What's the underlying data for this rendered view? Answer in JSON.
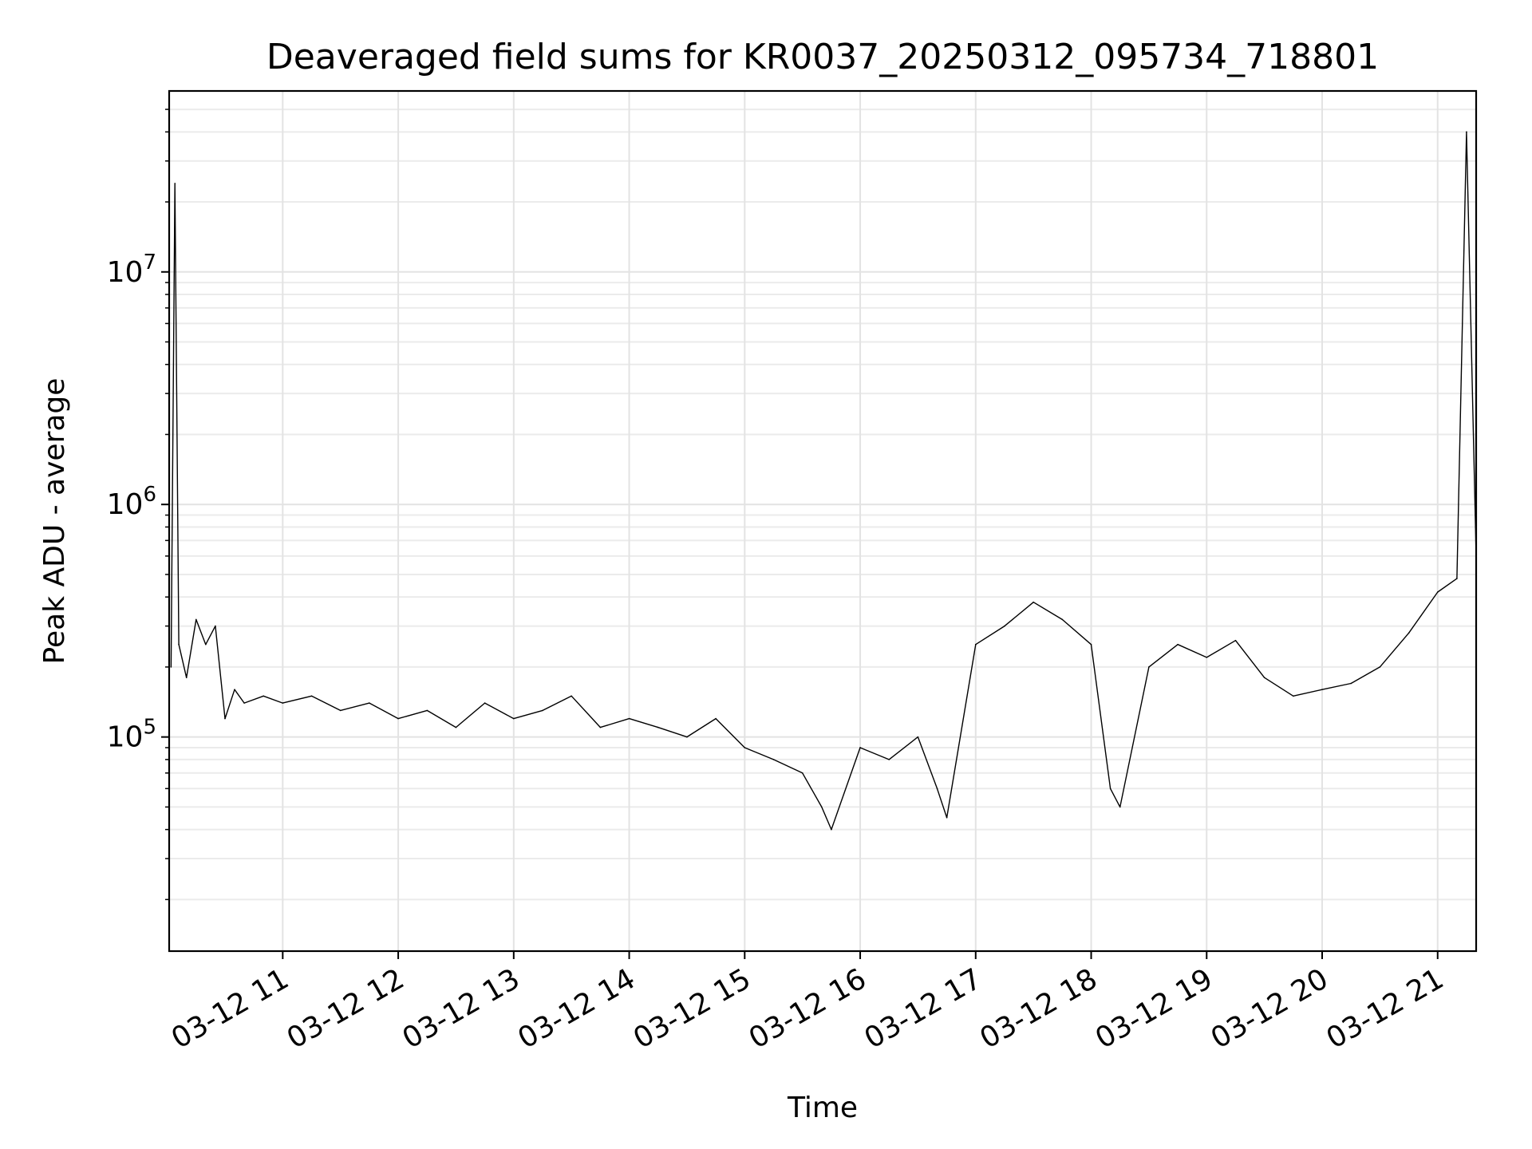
{
  "chart_data": {
    "type": "line",
    "title": "Deaveraged field sums for KR0037_20250312_095734_718801",
    "xlabel": "Time",
    "ylabel": "Peak ADU - average",
    "yscale": "log",
    "grid": "major and minor, light gray",
    "line_color": "#000000",
    "xlim": [
      "2025-03-12 10:01",
      "2025-03-12 21:20"
    ],
    "ylim": [
      12000,
      60000000
    ],
    "xticks": [
      {
        "value": "2025-03-12 11:00",
        "label": "03-12 11"
      },
      {
        "value": "2025-03-12 12:00",
        "label": "03-12 12"
      },
      {
        "value": "2025-03-12 13:00",
        "label": "03-12 13"
      },
      {
        "value": "2025-03-12 14:00",
        "label": "03-12 14"
      },
      {
        "value": "2025-03-12 15:00",
        "label": "03-12 15"
      },
      {
        "value": "2025-03-12 16:00",
        "label": "03-12 16"
      },
      {
        "value": "2025-03-12 17:00",
        "label": "03-12 17"
      },
      {
        "value": "2025-03-12 18:00",
        "label": "03-12 18"
      },
      {
        "value": "2025-03-12 19:00",
        "label": "03-12 19"
      },
      {
        "value": "2025-03-12 20:00",
        "label": "03-12 20"
      },
      {
        "value": "2025-03-12 21:00",
        "label": "03-12 21"
      }
    ],
    "yticks": [
      {
        "value": 100000,
        "base": "10",
        "exp": "5"
      },
      {
        "value": 1000000,
        "base": "10",
        "exp": "6"
      },
      {
        "value": 10000000,
        "base": "10",
        "exp": "7"
      }
    ],
    "series": [
      {
        "x": [
          "2025-03-12 10:02",
          "2025-03-12 10:04",
          "2025-03-12 10:06",
          "2025-03-12 10:10",
          "2025-03-12 10:15",
          "2025-03-12 10:20",
          "2025-03-12 10:25",
          "2025-03-12 10:30",
          "2025-03-12 10:35",
          "2025-03-12 10:40",
          "2025-03-12 10:50",
          "2025-03-12 11:00",
          "2025-03-12 11:15",
          "2025-03-12 11:30",
          "2025-03-12 11:45",
          "2025-03-12 12:00",
          "2025-03-12 12:15",
          "2025-03-12 12:30",
          "2025-03-12 12:45",
          "2025-03-12 13:00",
          "2025-03-12 13:15",
          "2025-03-12 13:30",
          "2025-03-12 13:45",
          "2025-03-12 14:00",
          "2025-03-12 14:15",
          "2025-03-12 14:30",
          "2025-03-12 14:45",
          "2025-03-12 15:00",
          "2025-03-12 15:15",
          "2025-03-12 15:30",
          "2025-03-12 15:40",
          "2025-03-12 15:45",
          "2025-03-12 16:00",
          "2025-03-12 16:15",
          "2025-03-12 16:30",
          "2025-03-12 16:40",
          "2025-03-12 16:45",
          "2025-03-12 17:00",
          "2025-03-12 17:15",
          "2025-03-12 17:30",
          "2025-03-12 17:45",
          "2025-03-12 18:00",
          "2025-03-12 18:10",
          "2025-03-12 18:15",
          "2025-03-12 18:30",
          "2025-03-12 18:45",
          "2025-03-12 19:00",
          "2025-03-12 19:15",
          "2025-03-12 19:30",
          "2025-03-12 19:45",
          "2025-03-12 20:00",
          "2025-03-12 20:15",
          "2025-03-12 20:30",
          "2025-03-12 20:45",
          "2025-03-12 21:00",
          "2025-03-12 21:10",
          "2025-03-12 21:15",
          "2025-03-12 21:20"
        ],
        "y": [
          200000,
          24000000,
          250000,
          180000,
          320000,
          250000,
          300000,
          120000,
          160000,
          140000,
          150000,
          140000,
          150000,
          130000,
          140000,
          120000,
          130000,
          110000,
          140000,
          120000,
          130000,
          150000,
          110000,
          120000,
          110000,
          100000,
          120000,
          90000,
          80000,
          70000,
          50000,
          40000,
          90000,
          80000,
          100000,
          60000,
          45000,
          250000,
          300000,
          380000,
          320000,
          250000,
          60000,
          50000,
          200000,
          250000,
          220000,
          260000,
          180000,
          150000,
          160000,
          170000,
          200000,
          280000,
          420000,
          480000,
          40000000,
          600000
        ]
      }
    ]
  }
}
